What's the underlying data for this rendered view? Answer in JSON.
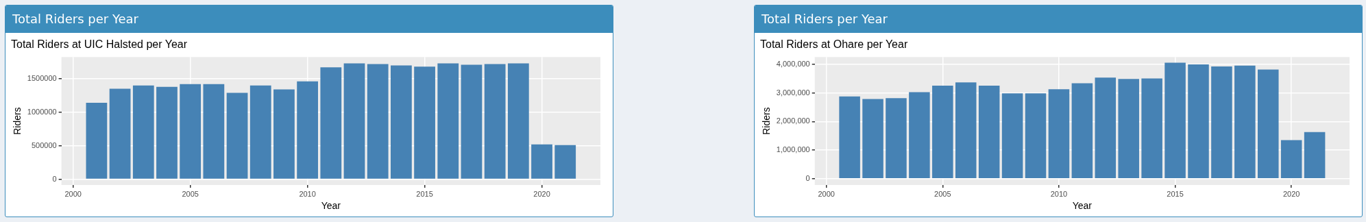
{
  "chart_data": [
    {
      "type": "bar",
      "title": "Total Riders per Year",
      "subtitle": "Total Riders at UIC Halsted per Year",
      "xlabel": "Year",
      "ylabel": "Riders",
      "x": [
        2001,
        2002,
        2003,
        2004,
        2005,
        2006,
        2007,
        2008,
        2009,
        2010,
        2011,
        2012,
        2013,
        2014,
        2015,
        2016,
        2017,
        2018,
        2019,
        2020,
        2021
      ],
      "values": [
        1140000,
        1350000,
        1400000,
        1380000,
        1420000,
        1420000,
        1290000,
        1400000,
        1340000,
        1460000,
        1670000,
        1730000,
        1720000,
        1700000,
        1680000,
        1730000,
        1710000,
        1720000,
        1730000,
        520000,
        510000
      ],
      "color": "#4682b4",
      "xlim": [
        1999.5,
        2022.5
      ],
      "xticks": [
        2000,
        2005,
        2010,
        2015,
        2020
      ],
      "ylim": [
        -87000,
        1825000
      ],
      "yticks": [
        0,
        500000,
        1000000,
        1500000
      ],
      "grid": true,
      "legend": false
    },
    {
      "type": "bar",
      "title": "Total Riders per Year",
      "subtitle": "Total Riders at Ohare per Year",
      "xlabel": "Year",
      "ylabel": "Riders",
      "x": [
        2001,
        2002,
        2003,
        2004,
        2005,
        2006,
        2007,
        2008,
        2009,
        2010,
        2011,
        2012,
        2013,
        2014,
        2015,
        2016,
        2017,
        2018,
        2019,
        2020,
        2021
      ],
      "values": [
        2880000,
        2790000,
        2820000,
        3030000,
        3260000,
        3370000,
        3260000,
        2990000,
        2990000,
        3130000,
        3340000,
        3540000,
        3490000,
        3510000,
        4060000,
        4000000,
        3930000,
        3960000,
        3820000,
        1350000,
        1630000
      ],
      "color": "#4682b4",
      "xlim": [
        1999.5,
        2022.5
      ],
      "xticks": [
        2000,
        2005,
        2010,
        2015,
        2020
      ],
      "ylim": [
        -220000,
        4260000
      ],
      "yticks": [
        {
          "value": 0,
          "label": "0"
        },
        {
          "value": 1000000,
          "label": "1,000,000"
        },
        {
          "value": 2000000,
          "label": "2,000,000"
        },
        {
          "value": 3000000,
          "label": "3,000,000"
        },
        {
          "value": 4000000,
          "label": "4,000,000"
        }
      ],
      "grid": true,
      "legend": false
    }
  ]
}
